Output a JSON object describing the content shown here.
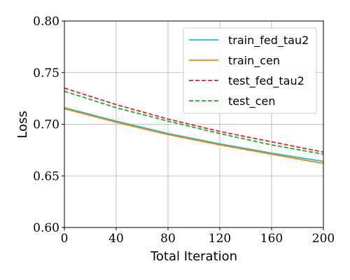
{
  "chart_data": {
    "type": "line",
    "xlabel": "Total Iteration",
    "ylabel": "Loss",
    "xlim": [
      0,
      200
    ],
    "ylim": [
      0.6,
      0.8
    ],
    "x_ticks": [
      "0",
      "40",
      "80",
      "120",
      "160",
      "200"
    ],
    "y_ticks": [
      "0.60",
      "0.65",
      "0.70",
      "0.75",
      "0.80"
    ],
    "grid": true,
    "legend_position": "top-right",
    "x": [
      0,
      40,
      80,
      120,
      160,
      200
    ],
    "series": [
      {
        "name": "train_fed_tau2",
        "color": "#17becf",
        "style": "solid",
        "values": [
          0.716,
          0.703,
          0.691,
          0.681,
          0.672,
          0.664
        ]
      },
      {
        "name": "train_cen",
        "color": "#ff7f0e",
        "style": "solid",
        "values": [
          0.715,
          0.702,
          0.69,
          0.68,
          0.671,
          0.662
        ]
      },
      {
        "name": "test_fed_tau2",
        "color": "#d62728",
        "style": "dashed",
        "values": [
          0.735,
          0.719,
          0.705,
          0.693,
          0.683,
          0.673
        ]
      },
      {
        "name": "test_cen",
        "color": "#2ca02c",
        "style": "dashed",
        "values": [
          0.732,
          0.716,
          0.703,
          0.691,
          0.68,
          0.671
        ]
      }
    ]
  }
}
